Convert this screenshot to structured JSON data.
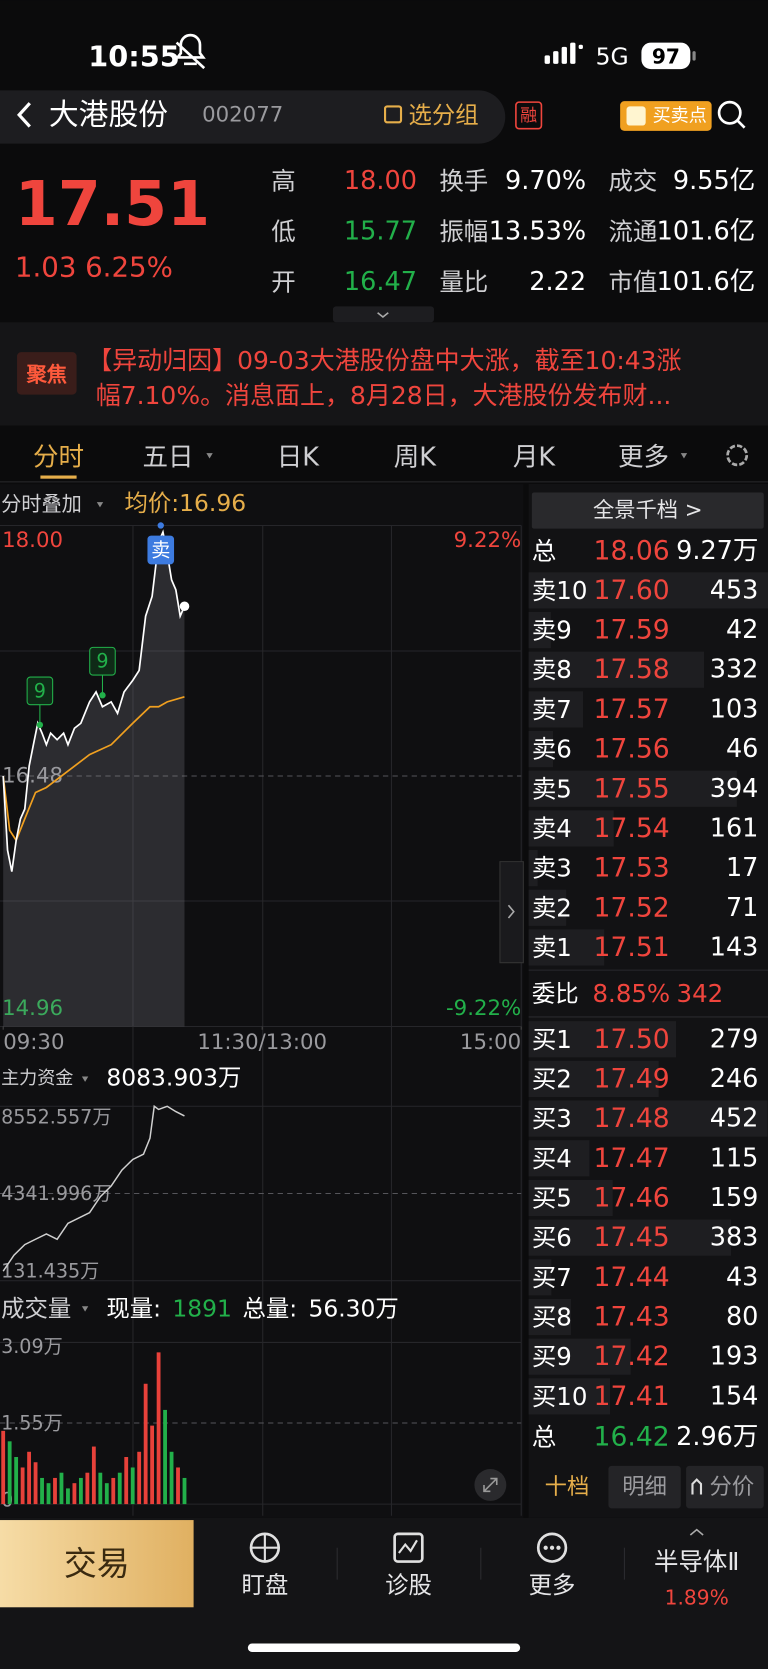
{
  "status": {
    "time": "10:55",
    "network": "5G",
    "battery": "97"
  },
  "header": {
    "name": "大港股份",
    "code": "002077",
    "group": "选分组",
    "margin_tag": "融",
    "signal": "买卖点"
  },
  "quote": {
    "price": "17.51",
    "change": "1.03",
    "pct": "6.25%",
    "stats": [
      [
        "高",
        "18.00",
        "换手",
        "9.70%",
        "成交",
        "9.55亿"
      ],
      [
        "低",
        "15.77",
        "振幅",
        "13.53%",
        "流通",
        "101.6亿"
      ],
      [
        "开",
        "16.47",
        "量比",
        "2.22",
        "市值",
        "101.6亿"
      ]
    ]
  },
  "news": {
    "tag": "聚焦",
    "lines": [
      "【异动归因】09-03大港股份盘中大涨，截至10:43涨",
      "幅7.10%。消息面上，8月28日，大港股份发布财..."
    ]
  },
  "tabs": [
    "分时",
    "五日",
    "日K",
    "周K",
    "月K",
    "更多"
  ],
  "intraday": {
    "overlay": "分时叠加",
    "avg_label": "均价:16.96",
    "xlim": [
      0,
      240
    ],
    "xticks": [
      {
        "value": 0,
        "label": "09:30"
      },
      {
        "value": 120,
        "label": "11:30/13:00"
      },
      {
        "value": 240,
        "label": "15:00"
      }
    ],
    "ylim": [
      14.96,
      18.0
    ],
    "yticks": [
      {
        "value": 18.0,
        "label": "18.00"
      },
      16.48,
      14.96
    ],
    "y2lim": [
      -9.22,
      9.22
    ],
    "y2ticks": [
      {
        "value": 9.22,
        "label": "9.22%"
      },
      {
        "value": -9.22,
        "label": "-9.22%"
      }
    ],
    "price": {
      "color": "#ffffff",
      "x": [
        0,
        2,
        4,
        6,
        8,
        10,
        12,
        14,
        16,
        18,
        20,
        22,
        25,
        28,
        30,
        33,
        36,
        40,
        43,
        46,
        50,
        53,
        56,
        60,
        63,
        66,
        69,
        72,
        74,
        76,
        78,
        80,
        82,
        84
      ],
      "values": [
        16.48,
        16.03,
        15.9,
        16.09,
        16.22,
        16.28,
        16.54,
        16.67,
        16.8,
        16.74,
        16.67,
        16.74,
        16.7,
        16.74,
        16.67,
        16.77,
        16.8,
        16.93,
        16.99,
        16.9,
        16.93,
        16.86,
        16.99,
        17.06,
        17.12,
        17.45,
        17.57,
        17.9,
        17.96,
        17.83,
        17.67,
        17.61,
        17.45,
        17.51
      ]
    },
    "average": {
      "color": "#f0a020",
      "x": [
        0,
        3,
        6,
        10,
        15,
        20,
        30,
        40,
        50,
        60,
        68,
        72,
        76,
        84
      ],
      "values": [
        16.48,
        16.15,
        16.09,
        16.22,
        16.38,
        16.41,
        16.51,
        16.61,
        16.67,
        16.8,
        16.9,
        16.9,
        16.93,
        16.96
      ]
    },
    "markers": [
      {
        "label": "9",
        "x": 17,
        "value": 16.79,
        "color": "#22b04a"
      },
      {
        "label": "9",
        "x": 46,
        "value": 16.97,
        "color": "#22b04a"
      },
      {
        "label": "卖",
        "x": 73,
        "value": 18.0,
        "color": "#3d7be0"
      }
    ]
  },
  "fund": {
    "label": "主力资金",
    "current": "8083.903万",
    "color": "#d0d0d0",
    "xlim": [
      0,
      240
    ],
    "ylim": [
      131.435,
      8552.557
    ],
    "yticks": [
      {
        "value": 8552.557,
        "label": "8552.557万"
      },
      {
        "value": 4341.996,
        "label": "4341.996万"
      },
      {
        "value": 131.435,
        "label": "131.435万"
      }
    ],
    "x": [
      0,
      5,
      10,
      15,
      20,
      25,
      30,
      40,
      45,
      50,
      55,
      60,
      65,
      68,
      70,
      72,
      76,
      80,
      84
    ],
    "values": [
      593,
      1364,
      1877,
      2134,
      2390,
      2134,
      2904,
      3418,
      4188,
      4701,
      5471,
      5985,
      6242,
      7012,
      8552,
      8400,
      8552,
      8296,
      8083.903
    ]
  },
  "volume": {
    "label": "成交量",
    "now_label": "现量:",
    "now": "1891",
    "total_label": "总量:",
    "total": "56.30万",
    "xlim": [
      0,
      240
    ],
    "ylim": [
      0,
      3.09
    ],
    "yticks": [
      {
        "value": 3.09,
        "label": "3.09万"
      },
      {
        "value": 1.55,
        "label": "1.55万"
      },
      0
    ],
    "x": [
      0,
      3,
      6,
      9,
      12,
      15,
      18,
      21,
      24,
      27,
      30,
      33,
      36,
      39,
      42,
      45,
      48,
      51,
      54,
      57,
      60,
      63,
      66,
      69,
      72,
      75,
      78,
      81,
      84
    ],
    "series": [
      {
        "color": "#e8413a",
        "values": [
          1.4,
          null,
          null,
          0.7,
          1.0,
          0.8,
          null,
          null,
          0.5,
          null,
          null,
          0.4,
          null,
          0.6,
          1.1,
          null,
          null,
          0.5,
          null,
          0.9,
          null,
          1.0,
          2.3,
          1.5,
          2.9,
          null,
          null,
          0.7,
          null
        ]
      },
      {
        "color": "#22b04a",
        "values": [
          null,
          1.2,
          0.9,
          null,
          null,
          null,
          0.5,
          0.4,
          null,
          0.6,
          0.3,
          null,
          0.5,
          null,
          null,
          0.6,
          0.4,
          null,
          0.6,
          null,
          0.7,
          null,
          null,
          null,
          null,
          1.8,
          1.0,
          null,
          0.5
        ]
      }
    ]
  },
  "orderbook": {
    "title": "全景千档 >",
    "sell_total": {
      "label": "总",
      "price": "18.06",
      "volume": "9.27万"
    },
    "sells": [
      {
        "label": "卖10",
        "price": "17.60",
        "volume": 453
      },
      {
        "label": "卖9",
        "price": "17.59",
        "volume": 42
      },
      {
        "label": "卖8",
        "price": "17.58",
        "volume": 332
      },
      {
        "label": "卖7",
        "price": "17.57",
        "volume": 103
      },
      {
        "label": "卖6",
        "price": "17.56",
        "volume": 46
      },
      {
        "label": "卖5",
        "price": "17.55",
        "volume": 394
      },
      {
        "label": "卖4",
        "price": "17.54",
        "volume": 161
      },
      {
        "label": "卖3",
        "price": "17.53",
        "volume": 17
      },
      {
        "label": "卖2",
        "price": "17.52",
        "volume": 71
      },
      {
        "label": "卖1",
        "price": "17.51",
        "volume": 143
      }
    ],
    "ratio": {
      "label": "委比",
      "pct": "8.85%",
      "diff": "342"
    },
    "buys": [
      {
        "label": "买1",
        "price": "17.50",
        "volume": 279
      },
      {
        "label": "买2",
        "price": "17.49",
        "volume": 246
      },
      {
        "label": "买3",
        "price": "17.48",
        "volume": 452
      },
      {
        "label": "买4",
        "price": "17.47",
        "volume": 115
      },
      {
        "label": "买5",
        "price": "17.46",
        "volume": 159
      },
      {
        "label": "买6",
        "price": "17.45",
        "volume": 383
      },
      {
        "label": "买7",
        "price": "17.44",
        "volume": 43
      },
      {
        "label": "买8",
        "price": "17.43",
        "volume": 80
      },
      {
        "label": "买9",
        "price": "17.42",
        "volume": 193
      },
      {
        "label": "买10",
        "price": "17.41",
        "volume": 154
      }
    ],
    "buy_total": {
      "label": "总",
      "price": "16.42",
      "volume": "2.96万"
    },
    "buttons": [
      "十档",
      "明细",
      "分价"
    ]
  },
  "nav": {
    "trade": "交易",
    "items": [
      "盯盘",
      "诊股",
      "更多"
    ],
    "sector": "半导体Ⅱ",
    "sector_pct": "1.89%"
  }
}
